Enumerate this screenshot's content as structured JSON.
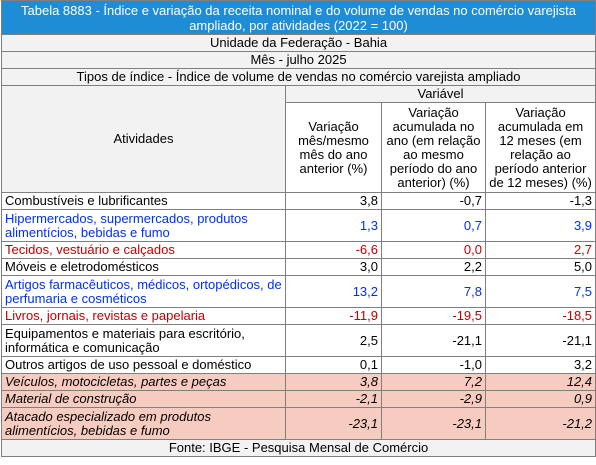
{
  "title": "Tabela 8883 - Índice e variação da receita nominal e do volume de vendas no comércio varejista ampliado, por atividades (2022 = 100)",
  "unidade": "Unidade da Federação - Bahia",
  "mes": "Mês - julho 2025",
  "tipos": "Tipos de índice - Índice de volume de vendas no comércio varejista ampliado",
  "variavel": "Variável",
  "atividades_header": "Atividades",
  "col_headers": [
    "Variação mês/mesmo mês do ano anterior (%)",
    "Variação acumulada no ano (em relação ao mesmo período do ano anterior) (%)",
    "Variação acumulada em 12 meses (em relação ao período anterior de 12 meses) (%)"
  ],
  "rows": [
    {
      "label": "Combustíveis e lubrificantes",
      "v1": "3,8",
      "v2": "-0,7",
      "v3": "-1,3",
      "style": "normal"
    },
    {
      "label": "Hipermercados, supermercados, produtos alimentícios, bebidas e fumo",
      "v1": "1,3",
      "v2": "0,7",
      "v3": "3,9",
      "style": "blue"
    },
    {
      "label": "Tecidos, vestuário e calçados",
      "v1": "-6,6",
      "v2": "0,0",
      "v3": "2,7",
      "style": "red"
    },
    {
      "label": "Móveis e eletrodomésticos",
      "v1": "3,0",
      "v2": "2,2",
      "v3": "5,0",
      "style": "normal"
    },
    {
      "label": "Artigos farmacêuticos, médicos, ortopédicos, de perfumaria e cosméticos",
      "v1": "13,2",
      "v2": "7,8",
      "v3": "7,5",
      "style": "blue"
    },
    {
      "label": "Livros, jornais, revistas e papelaria",
      "v1": "-11,9",
      "v2": "-19,5",
      "v3": "-18,5",
      "style": "red"
    },
    {
      "label": "Equipamentos e materiais para escritório, informática e comunicação",
      "v1": "2,5",
      "v2": "-21,1",
      "v3": "-21,1",
      "style": "normal"
    },
    {
      "label": "Outros artigos de uso pessoal e doméstico",
      "v1": "0,1",
      "v2": "-1,0",
      "v3": "3,2",
      "style": "normal"
    },
    {
      "label": "Veículos, motocicletas, partes e peças",
      "v1": "3,8",
      "v2": "7,2",
      "v3": "12,4",
      "style": "pink"
    },
    {
      "label": "Material de construção",
      "v1": "-2,1",
      "v2": "-2,9",
      "v3": "0,9",
      "style": "pink"
    },
    {
      "label": "Atacado especializado em produtos alimentícios, bebidas e fumo",
      "v1": "-23,1",
      "v2": "-23,1",
      "v3": "-21,2",
      "style": "pink"
    }
  ],
  "fonte": "Fonte: IBGE - Pesquisa Mensal de Comércio",
  "colors": {
    "title_bg": "#1f8dd6",
    "blue_text": "#0032e6",
    "red_text": "#c00000",
    "pink_bg": "#f7ccc0"
  }
}
